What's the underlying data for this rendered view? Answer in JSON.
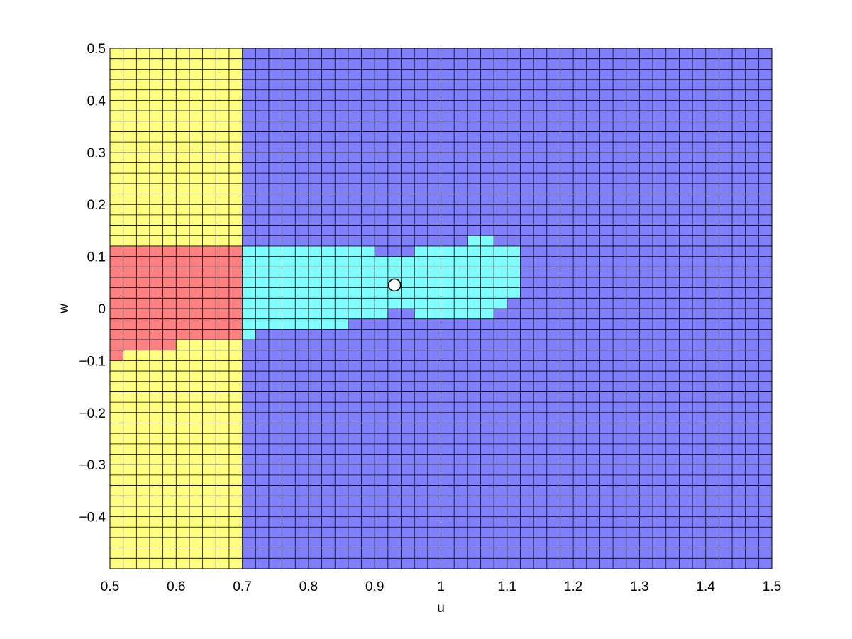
{
  "chart_data": {
    "type": "heatmap",
    "title": "",
    "xlabel": "u",
    "ylabel": "w",
    "xlim": [
      0.5,
      1.5
    ],
    "ylim": [
      -0.5,
      0.5
    ],
    "grid": true,
    "cell_size": {
      "du": 0.02,
      "dw": 0.02
    },
    "x_ticks": [
      "0.5",
      "0.6",
      "0.7",
      "0.8",
      "0.9",
      "1",
      "1.1",
      "1.2",
      "1.3",
      "1.4",
      "1.5"
    ],
    "y_ticks": [
      "−0.4",
      "−0.3",
      "−0.2",
      "−0.1",
      "0",
      "0.1",
      "0.2",
      "0.3",
      "0.4",
      "0.5"
    ],
    "colors": {
      "yellow": "#ffff80",
      "blue": "#8080ff",
      "red": "#ff8080",
      "cyan": "#80ffff",
      "grid_line": "#000000",
      "dotted_grid": "#333333"
    },
    "regions": [
      {
        "color": "yellow",
        "u": [
          0.5,
          0.7
        ],
        "w": [
          -0.5,
          0.5
        ]
      },
      {
        "color": "blue",
        "u": [
          0.7,
          1.5
        ],
        "w": [
          -0.5,
          0.5
        ]
      },
      {
        "color": "red",
        "u": [
          0.5,
          0.52
        ],
        "w": [
          -0.1,
          0.12
        ]
      },
      {
        "color": "red",
        "u": [
          0.52,
          0.6
        ],
        "w": [
          -0.08,
          0.12
        ]
      },
      {
        "color": "red",
        "u": [
          0.6,
          0.7
        ],
        "w": [
          -0.06,
          0.12
        ]
      },
      {
        "color": "cyan",
        "u": [
          0.7,
          0.72
        ],
        "w": [
          -0.06,
          0.12
        ]
      },
      {
        "color": "cyan",
        "u": [
          0.72,
          0.86
        ],
        "w": [
          -0.04,
          0.12
        ]
      },
      {
        "color": "cyan",
        "u": [
          0.86,
          0.9
        ],
        "w": [
          -0.02,
          0.12
        ]
      },
      {
        "color": "cyan",
        "u": [
          0.9,
          0.92
        ],
        "w": [
          -0.02,
          0.1
        ]
      },
      {
        "color": "cyan",
        "u": [
          0.92,
          0.96
        ],
        "w": [
          0.0,
          0.1
        ]
      },
      {
        "color": "cyan",
        "u": [
          0.96,
          1.04
        ],
        "w": [
          -0.02,
          0.12
        ]
      },
      {
        "color": "cyan",
        "u": [
          1.04,
          1.08
        ],
        "w": [
          -0.02,
          0.14
        ]
      },
      {
        "color": "cyan",
        "u": [
          1.08,
          1.1
        ],
        "w": [
          0.0,
          0.12
        ]
      },
      {
        "color": "cyan",
        "u": [
          1.1,
          1.12
        ],
        "w": [
          0.02,
          0.12
        ]
      }
    ],
    "point": {
      "u": 0.93,
      "w": 0.045
    }
  }
}
